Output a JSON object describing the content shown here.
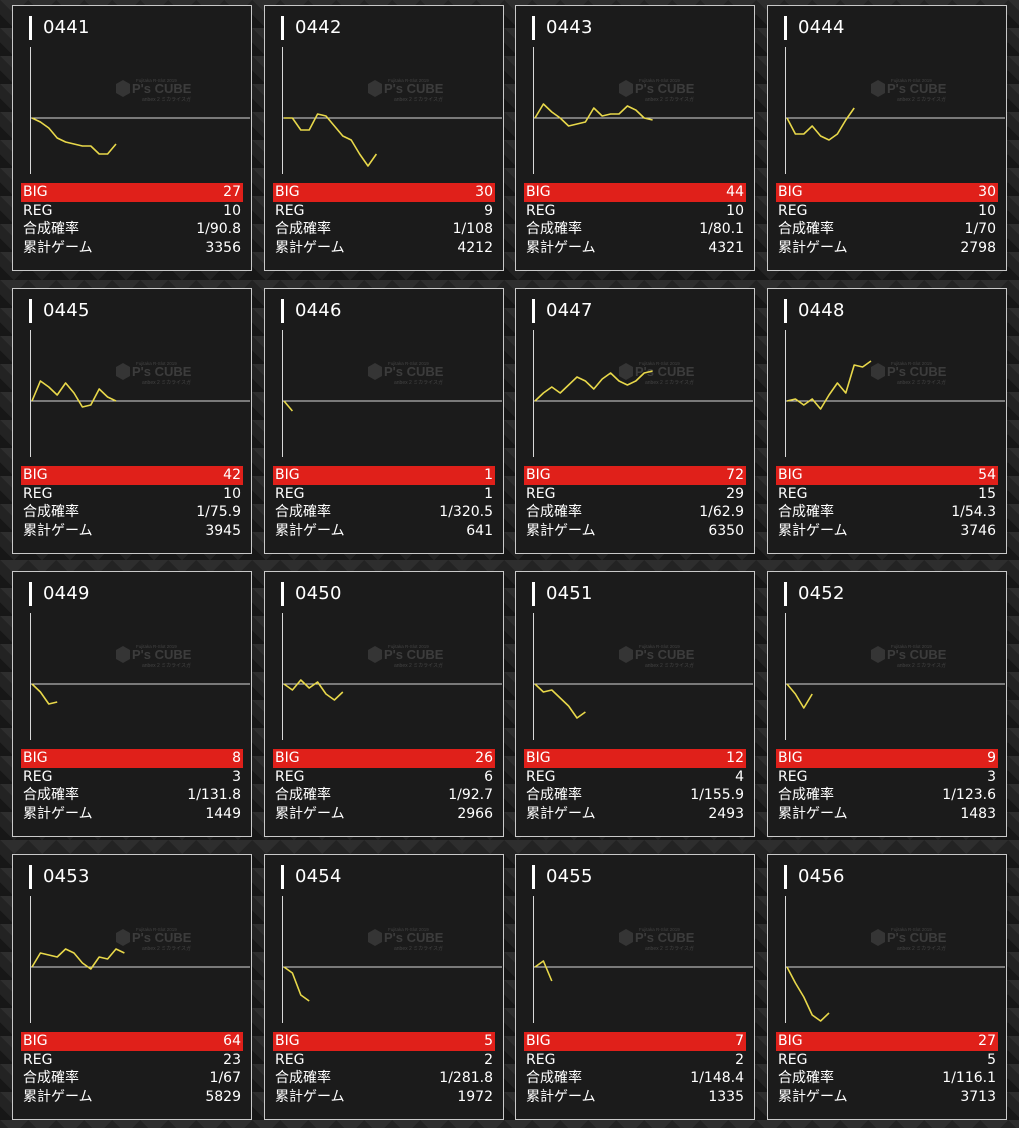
{
  "labels": {
    "big": "BIG",
    "reg": "REG",
    "rate": "合成確率",
    "games": "累計ゲーム"
  },
  "watermark": {
    "brand": "P's CUBE",
    "subtitle": "Fujitaka R-Slot 2019",
    "tagline": "anbex 2 ミカライスガ"
  },
  "colors": {
    "card_background": "#1b1b1b",
    "card_border": "#c9c9c9",
    "big_row": "#e0201a",
    "graph_line": "#e8d84a",
    "axis": "#d8d8d8",
    "text": "#ffffff"
  },
  "machines": [
    {
      "number": "0441",
      "big": "27",
      "reg": "10",
      "rate": "1/90.8",
      "games": "3356",
      "chart_data": {
        "type": "line",
        "values": [
          0,
          -2,
          -5,
          -10,
          -12,
          -13,
          -14,
          -14,
          -18,
          -18,
          -13
        ]
      }
    },
    {
      "number": "0442",
      "big": "30",
      "reg": "9",
      "rate": "1/108",
      "games": "4212",
      "chart_data": {
        "type": "line",
        "values": [
          0,
          0,
          -6,
          -6,
          2,
          1,
          -4,
          -9,
          -11,
          -18,
          -24,
          -18
        ]
      }
    },
    {
      "number": "0443",
      "big": "44",
      "reg": "10",
      "rate": "1/80.1",
      "games": "4321",
      "chart_data": {
        "type": "line",
        "values": [
          0,
          7,
          3,
          0,
          -4,
          -3,
          -2,
          5,
          1,
          2,
          2,
          6,
          4,
          0,
          -1
        ]
      }
    },
    {
      "number": "0444",
      "big": "30",
      "reg": "10",
      "rate": "1/70",
      "games": "2798",
      "chart_data": {
        "type": "line",
        "values": [
          0,
          -8,
          -8,
          -4,
          -9,
          -11,
          -8,
          -1,
          5
        ]
      }
    },
    {
      "number": "0445",
      "big": "42",
      "reg": "10",
      "rate": "1/75.9",
      "games": "3945",
      "chart_data": {
        "type": "line",
        "values": [
          0,
          10,
          7,
          3,
          9,
          4,
          -3,
          -2,
          6,
          2,
          0
        ]
      }
    },
    {
      "number": "0446",
      "big": "1",
      "reg": "1",
      "rate": "1/320.5",
      "games": "641",
      "chart_data": {
        "type": "line",
        "values": [
          0,
          -5
        ]
      }
    },
    {
      "number": "0447",
      "big": "72",
      "reg": "29",
      "rate": "1/62.9",
      "games": "6350",
      "chart_data": {
        "type": "line",
        "values": [
          0,
          4,
          7,
          4,
          8,
          12,
          10,
          6,
          11,
          14,
          10,
          8,
          10,
          14,
          15
        ]
      }
    },
    {
      "number": "0448",
      "big": "54",
      "reg": "15",
      "rate": "1/54.3",
      "games": "3746",
      "chart_data": {
        "type": "line",
        "values": [
          0,
          1,
          -2,
          1,
          -4,
          3,
          9,
          4,
          18,
          17,
          20
        ]
      }
    },
    {
      "number": "0449",
      "big": "8",
      "reg": "3",
      "rate": "1/131.8",
      "games": "1449",
      "chart_data": {
        "type": "line",
        "values": [
          0,
          -4,
          -10,
          -9
        ]
      }
    },
    {
      "number": "0450",
      "big": "26",
      "reg": "6",
      "rate": "1/92.7",
      "games": "2966",
      "chart_data": {
        "type": "line",
        "values": [
          0,
          -3,
          2,
          -2,
          1,
          -5,
          -8,
          -4
        ]
      }
    },
    {
      "number": "0451",
      "big": "12",
      "reg": "4",
      "rate": "1/155.9",
      "games": "2493",
      "chart_data": {
        "type": "line",
        "values": [
          0,
          -4,
          -3,
          -7,
          -11,
          -17,
          -14
        ]
      }
    },
    {
      "number": "0452",
      "big": "9",
      "reg": "3",
      "rate": "1/123.6",
      "games": "1483",
      "chart_data": {
        "type": "line",
        "values": [
          0,
          -5,
          -12,
          -5
        ]
      }
    },
    {
      "number": "0453",
      "big": "64",
      "reg": "23",
      "rate": "1/67",
      "games": "5829",
      "chart_data": {
        "type": "line",
        "values": [
          0,
          7,
          6,
          5,
          9,
          7,
          2,
          -1,
          5,
          4,
          9,
          7
        ]
      }
    },
    {
      "number": "0454",
      "big": "5",
      "reg": "2",
      "rate": "1/281.8",
      "games": "1972",
      "chart_data": {
        "type": "line",
        "values": [
          0,
          -3,
          -14,
          -17
        ]
      }
    },
    {
      "number": "0455",
      "big": "7",
      "reg": "2",
      "rate": "1/148.4",
      "games": "1335",
      "chart_data": {
        "type": "line",
        "values": [
          0,
          3,
          -7
        ]
      }
    },
    {
      "number": "0456",
      "big": "27",
      "reg": "5",
      "rate": "1/116.1",
      "games": "3713",
      "chart_data": {
        "type": "line",
        "values": [
          0,
          -8,
          -15,
          -24,
          -27,
          -23
        ]
      }
    }
  ]
}
